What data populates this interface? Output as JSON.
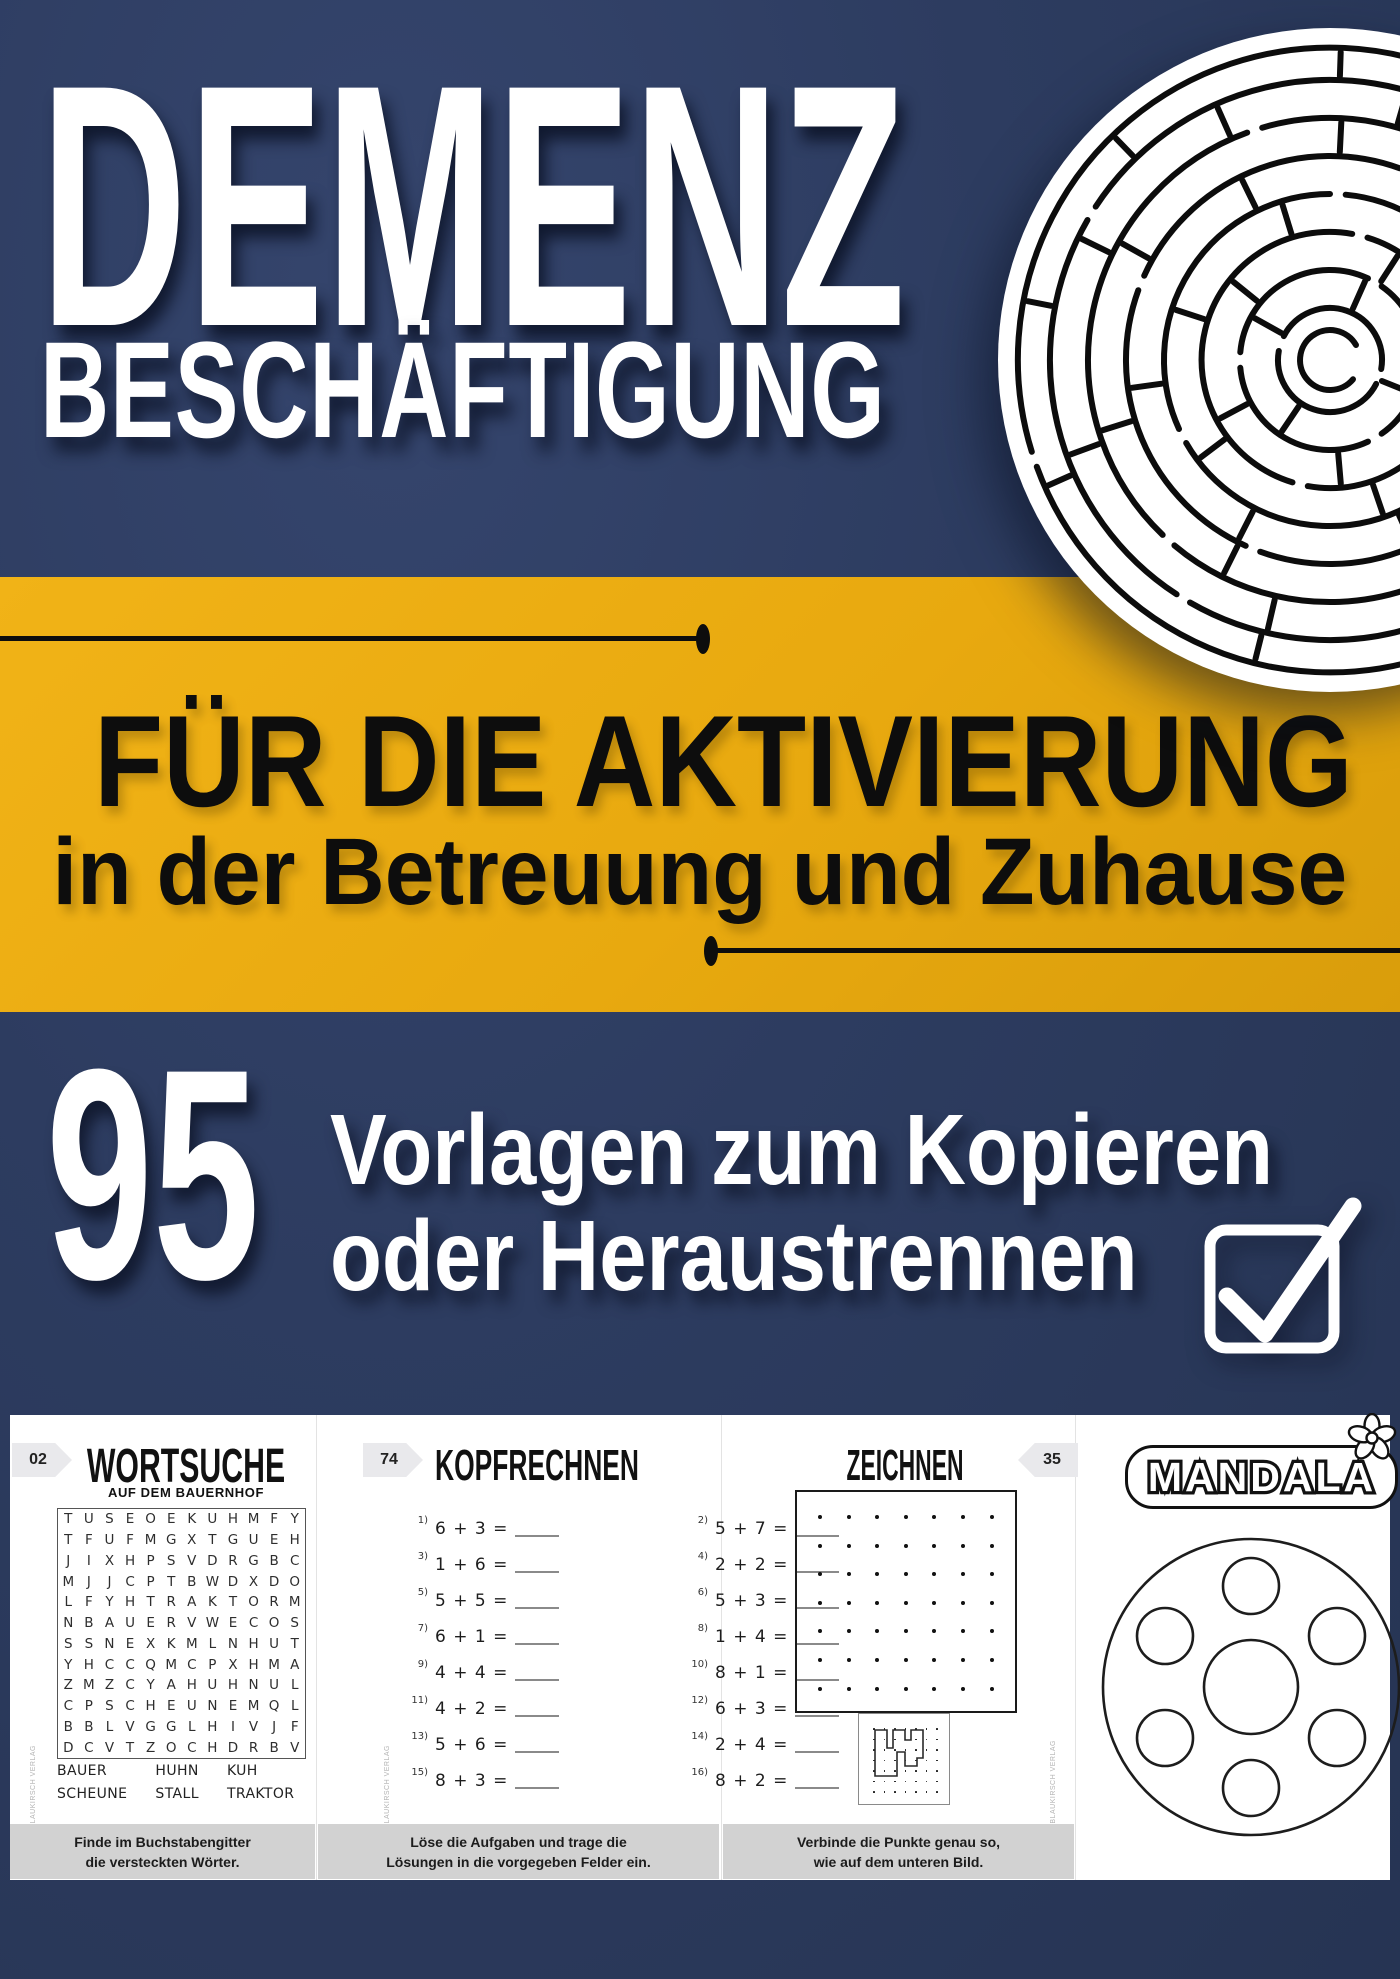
{
  "colors": {
    "navy": "#2d3c60",
    "yellow": "#e8a90f",
    "white": "#ffffff",
    "black": "#0d0d0d",
    "caption_gray": "#d2d2d2",
    "badge_gray": "#e9e9ec"
  },
  "cover": {
    "title_line1": "DEMENZ",
    "title_line2": "BESCHÄFTIGUNG",
    "band_heading": "FÜR DIE AKTIVIERUNG",
    "band_subheading": "in der Betreuung und Zuhause",
    "count_number": "95",
    "count_line1": "Vorlagen zum Kopieren",
    "count_line2": "oder Heraustrennen"
  },
  "worksheets": {
    "wortsuche": {
      "page_number": "02",
      "title": "WORTSUCHE",
      "subtitle": "AUF DEM BAUERNHOF",
      "grid_rows": [
        "TUSEOEKUHMFY",
        "TFUFMGXTGUEH",
        "JIXHPSVDRGBC",
        "MJJCPTBWDXDO",
        "LFYHTRAKTORM",
        "NBAUERVWECOS",
        "SSNEXKMLNHUT",
        "YHCCQMCPXHMA",
        "ZMZCYAHUHNUL",
        "CPSCHEUNEMQL",
        "BBLVGGLHIVJF",
        "DCVTZOCHDRBV"
      ],
      "words": [
        [
          "BAUER",
          "SCHEUNE"
        ],
        [
          "HUHN",
          "STALL"
        ],
        [
          "KUH",
          "TRAKTOR"
        ]
      ],
      "caption_line1": "Finde im Buchstabengitter",
      "caption_line2": "die versteckten Wörter.",
      "copyright": "© BLAUKIRSCH VERLAG"
    },
    "kopfrechnen": {
      "page_number": "74",
      "title": "KOPFRECHNEN",
      "problems": [
        {
          "n": "1)",
          "expr": "6 + 3 ="
        },
        {
          "n": "2)",
          "expr": "5 + 7 ="
        },
        {
          "n": "3)",
          "expr": "1 + 6 ="
        },
        {
          "n": "4)",
          "expr": "2 + 2 ="
        },
        {
          "n": "5)",
          "expr": "5 + 5 ="
        },
        {
          "n": "6)",
          "expr": "5 + 3 ="
        },
        {
          "n": "7)",
          "expr": "6 + 1 ="
        },
        {
          "n": "8)",
          "expr": "1 + 4 ="
        },
        {
          "n": "9)",
          "expr": "4 + 4 ="
        },
        {
          "n": "10)",
          "expr": "8 + 1 ="
        },
        {
          "n": "11)",
          "expr": "4 + 2 ="
        },
        {
          "n": "12)",
          "expr": "6 + 3 ="
        },
        {
          "n": "13)",
          "expr": "5 + 6 ="
        },
        {
          "n": "14)",
          "expr": "2 + 4 ="
        },
        {
          "n": "15)",
          "expr": "8 + 3 ="
        },
        {
          "n": "16)",
          "expr": "8 + 2 ="
        }
      ],
      "caption_line1": "Löse die Aufgaben und trage die",
      "caption_line2": "Lösungen in die vorgegeben Felder ein.",
      "copyright": "© BLAUKIRSCH VERLAG"
    },
    "zeichnen": {
      "page_number": "35",
      "title": "ZEICHNEN",
      "caption_line1": "Verbinde die Punkte genau so,",
      "caption_line2": "wie auf dem unteren Bild.",
      "copyright": "© BLAUKIRSCH VERLAG"
    },
    "mandala": {
      "title": "MANDALA"
    }
  }
}
